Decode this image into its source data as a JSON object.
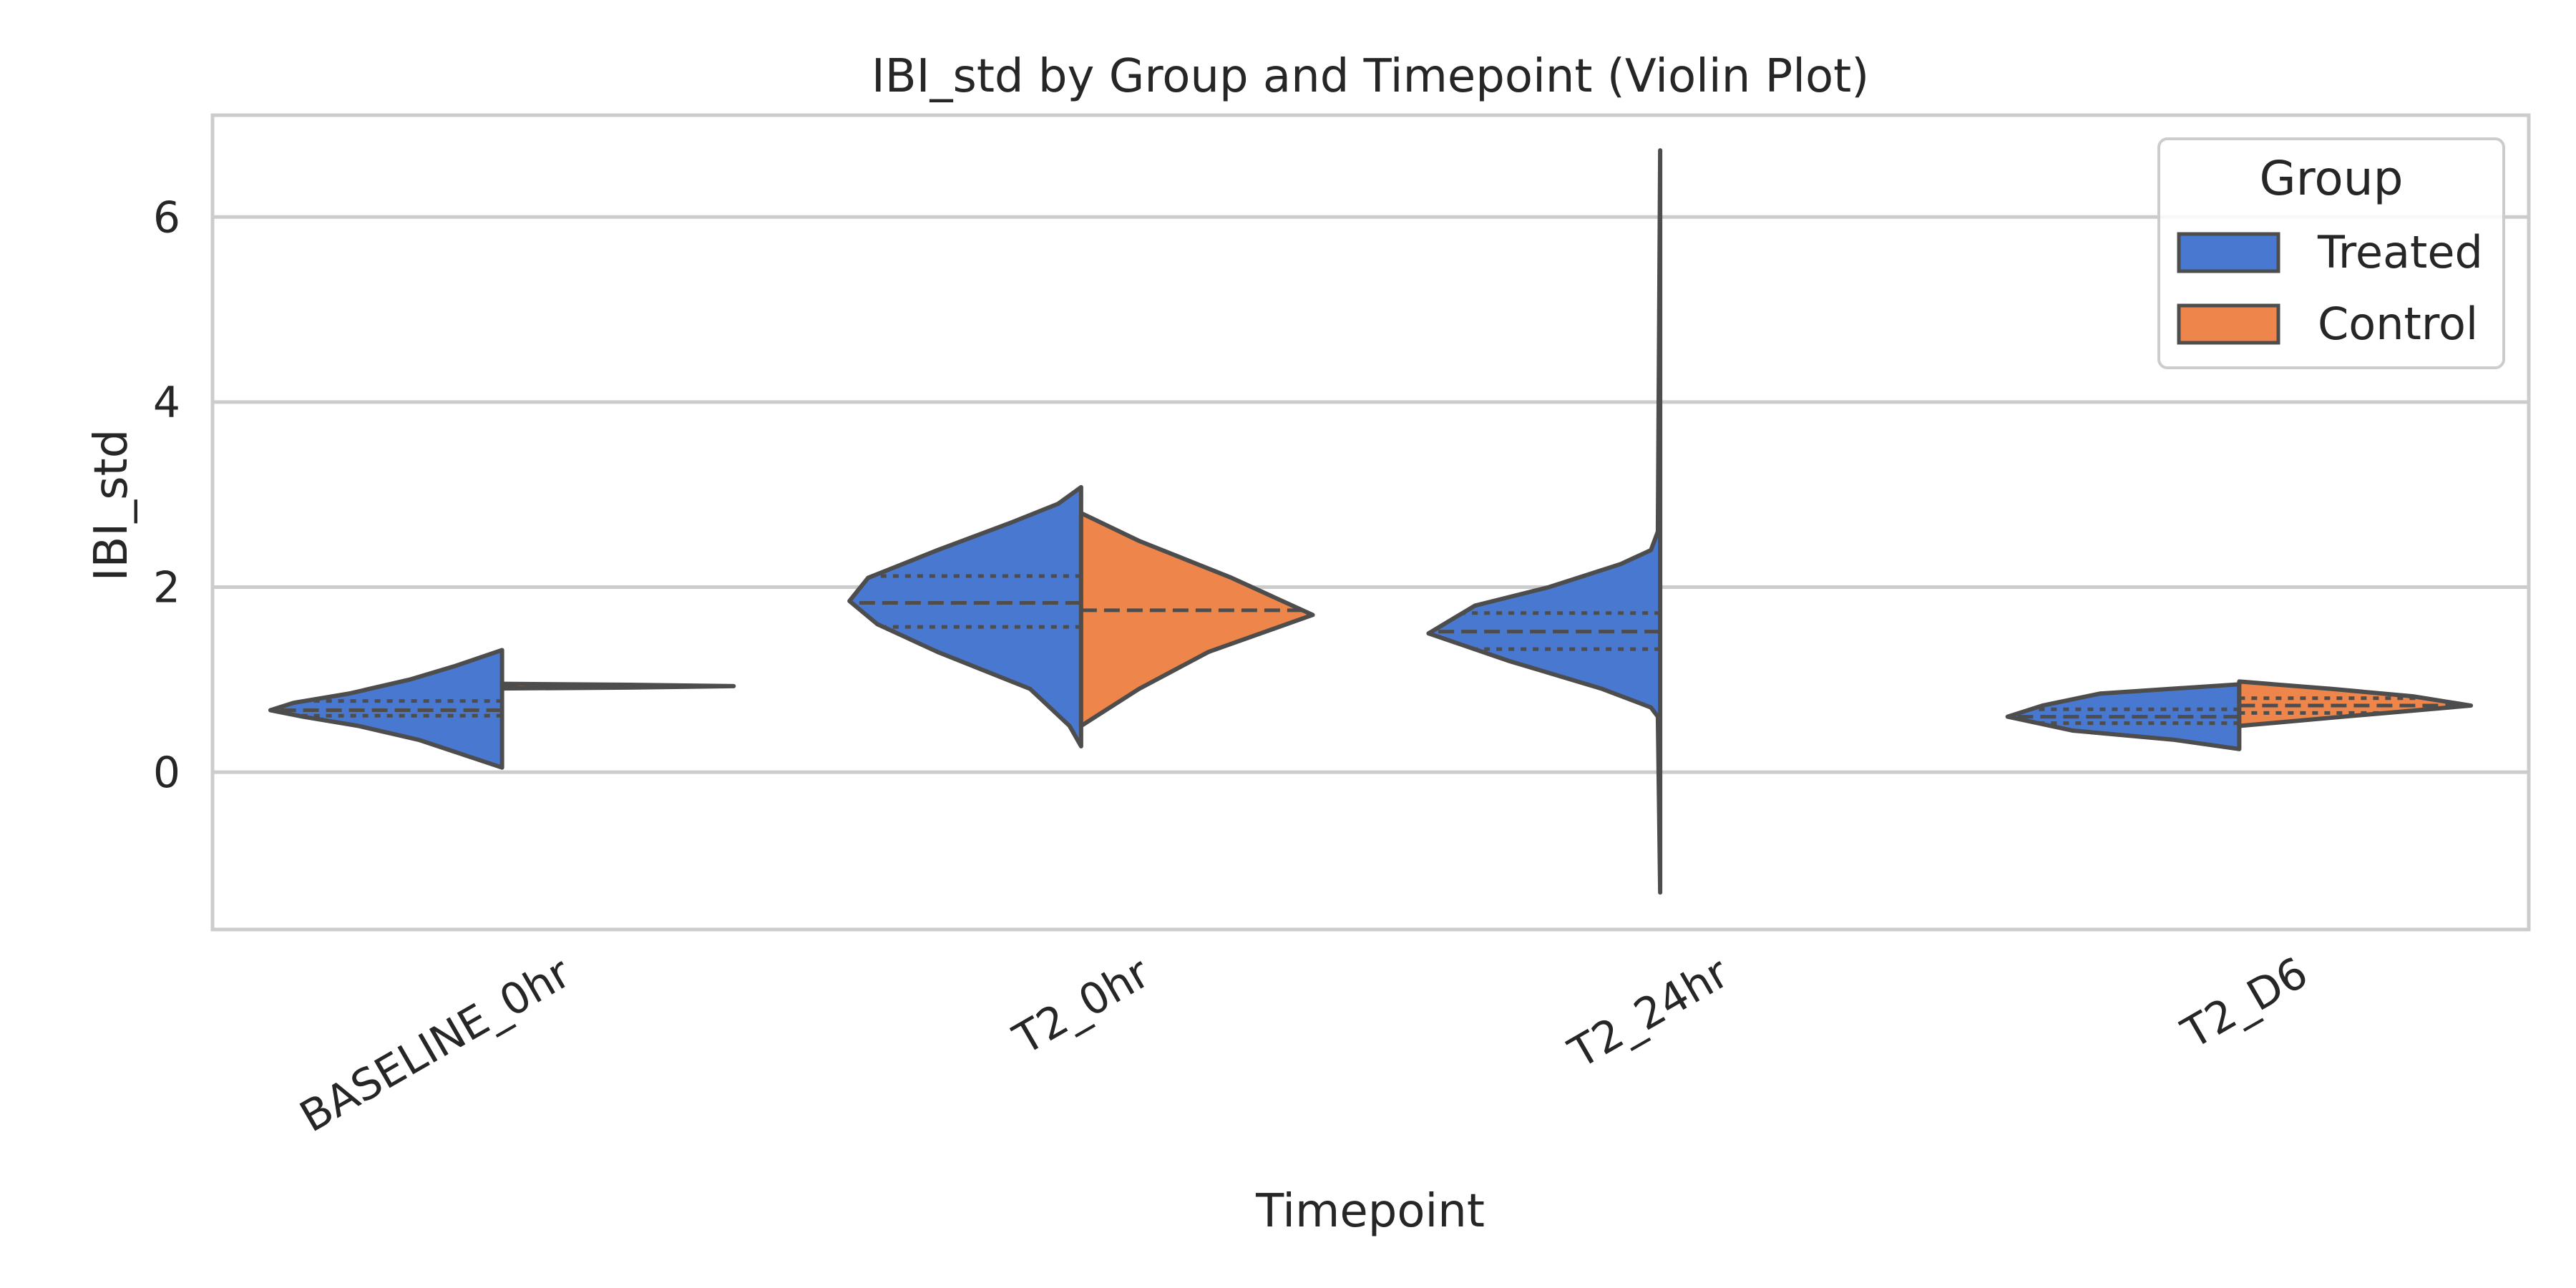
{
  "chart_data": {
    "type": "violin",
    "title": "IBI_std by Group and Timepoint (Violin Plot)",
    "xlabel": "Timepoint",
    "ylabel": "IBI_std",
    "categories": [
      "BASELINE_0hr",
      "T2_0hr",
      "T2_24hr",
      "T2_D6"
    ],
    "ylim": [
      -1.7,
      7.1
    ],
    "yticks": [
      0,
      2,
      4,
      6
    ],
    "grid": "horizontal",
    "split": true,
    "legend": {
      "title": "Group",
      "placement": "top-right",
      "entries": [
        "Treated",
        "Control"
      ]
    },
    "series": [
      {
        "name": "Treated",
        "color": "#4878d0",
        "side": "left",
        "violins": [
          {
            "category": "BASELINE_0hr",
            "min": 0.05,
            "max": 1.32,
            "q1": 0.61,
            "median": 0.67,
            "q3": 0.77,
            "profile": [
              [
                0.05,
                0
              ],
              [
                0.2,
                0.18
              ],
              [
                0.35,
                0.36
              ],
              [
                0.5,
                0.62
              ],
              [
                0.6,
                0.86
              ],
              [
                0.67,
                1.0
              ],
              [
                0.75,
                0.9
              ],
              [
                0.85,
                0.66
              ],
              [
                1.0,
                0.4
              ],
              [
                1.15,
                0.2
              ],
              [
                1.32,
                0
              ]
            ]
          },
          {
            "category": "T2_0hr",
            "min": 0.28,
            "max": 3.08,
            "q1": 1.57,
            "median": 1.83,
            "q3": 2.12,
            "profile": [
              [
                0.28,
                0
              ],
              [
                0.5,
                0.05
              ],
              [
                0.9,
                0.22
              ],
              [
                1.3,
                0.62
              ],
              [
                1.6,
                0.88
              ],
              [
                1.85,
                1.0
              ],
              [
                2.1,
                0.92
              ],
              [
                2.4,
                0.62
              ],
              [
                2.7,
                0.3
              ],
              [
                2.9,
                0.1
              ],
              [
                3.08,
                0
              ]
            ]
          },
          {
            "category": "T2_24hr",
            "min": -1.3,
            "max": 6.72,
            "q1": 1.33,
            "median": 1.52,
            "q3": 1.72,
            "profile": [
              [
                -1.3,
                0
              ],
              [
                0.6,
                0.01
              ],
              [
                0.7,
                0.04
              ],
              [
                0.9,
                0.25
              ],
              [
                1.2,
                0.65
              ],
              [
                1.5,
                1.0
              ],
              [
                1.8,
                0.8
              ],
              [
                2.0,
                0.48
              ],
              [
                2.25,
                0.17
              ],
              [
                2.4,
                0.04
              ],
              [
                2.6,
                0.01
              ],
              [
                6.72,
                0
              ]
            ]
          },
          {
            "category": "T2_D6",
            "min": 0.25,
            "max": 0.95,
            "q1": 0.53,
            "median": 0.6,
            "q3": 0.68,
            "profile": [
              [
                0.25,
                0
              ],
              [
                0.35,
                0.28
              ],
              [
                0.45,
                0.72
              ],
              [
                0.6,
                1.0
              ],
              [
                0.72,
                0.85
              ],
              [
                0.85,
                0.6
              ],
              [
                0.95,
                0
              ]
            ]
          }
        ]
      },
      {
        "name": "Control",
        "color": "#ee854a",
        "side": "right",
        "violins": [
          {
            "category": "BASELINE_0hr",
            "min": 0.92,
            "max": 0.94,
            "median": 0.93,
            "profile": [
              [
                0.905,
                0
              ],
              [
                0.915,
                0.55
              ],
              [
                0.93,
                1.0
              ],
              [
                0.945,
                0.55
              ],
              [
                0.955,
                0
              ]
            ]
          },
          {
            "category": "T2_0hr",
            "min": 0.6,
            "max": 2.7,
            "median": 1.75,
            "profile": [
              [
                0.5,
                0
              ],
              [
                0.9,
                0.25
              ],
              [
                1.3,
                0.55
              ],
              [
                1.7,
                1.0
              ],
              [
                2.1,
                0.65
              ],
              [
                2.5,
                0.25
              ],
              [
                2.8,
                0
              ]
            ]
          },
          {
            "category": "T2_D6",
            "min": 0.5,
            "max": 0.98,
            "q1": 0.64,
            "median": 0.72,
            "q3": 0.8,
            "profile": [
              [
                0.5,
                0
              ],
              [
                0.6,
                0.45
              ],
              [
                0.72,
                1.0
              ],
              [
                0.82,
                0.75
              ],
              [
                0.9,
                0.4
              ],
              [
                0.98,
                0
              ]
            ]
          }
        ]
      }
    ]
  }
}
